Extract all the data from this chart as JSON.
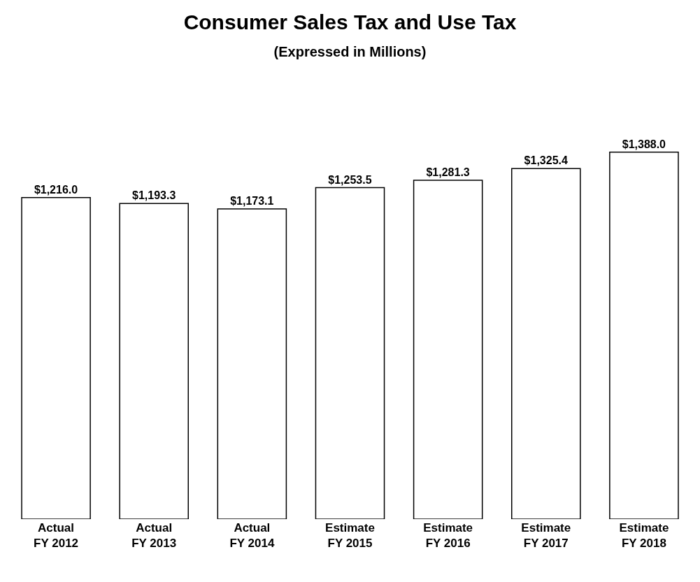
{
  "chart_data": {
    "type": "bar",
    "title": "Consumer Sales Tax and Use Tax",
    "subtitle": "(Expressed in Millions)",
    "categories": [
      "Actual\nFY 2012",
      "Actual\nFY 2013",
      "Actual\nFY 2014",
      "Estimate\nFY 2015",
      "Estimate\nFY 2016",
      "Estimate\nFY 2017",
      "Estimate\nFY 2018"
    ],
    "values": [
      1216.0,
      1193.3,
      1173.1,
      1253.5,
      1281.3,
      1325.4,
      1388.0
    ],
    "value_labels": [
      "$1,216.0",
      "$1,193.3",
      "$1,173.1",
      "$1,253.5",
      "$1,281.3",
      "$1,325.4",
      "$1,388.0"
    ],
    "color": "#ffffff"
  }
}
